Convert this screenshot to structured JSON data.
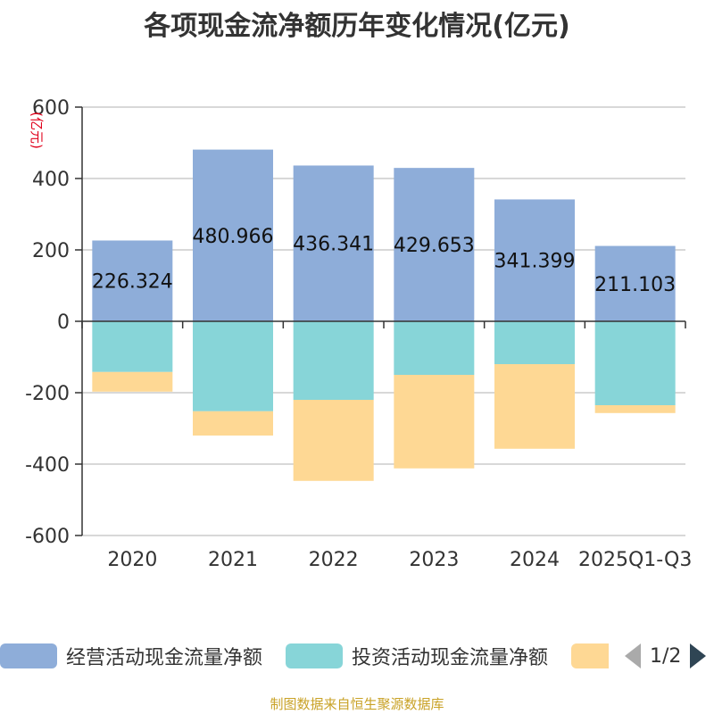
{
  "title": "各项现金流净额历年变化情况(亿元)",
  "source": "制图数据来自恒生聚源数据库",
  "legend": {
    "items": [
      {
        "label": "经营活动现金流量净额",
        "color": "#8eadd9"
      },
      {
        "label": "投资活动现金流量净额",
        "color": "#87d5d8"
      },
      {
        "label": "",
        "color": "#fed894"
      }
    ],
    "page": "1/2"
  },
  "chart_data": {
    "type": "bar",
    "stacked": true,
    "categories": [
      "2020",
      "2021",
      "2022",
      "2023",
      "2024",
      "2025Q1-Q3"
    ],
    "ylabel": "(亿元)",
    "ylim": [
      -600,
      600
    ],
    "yticks": [
      600,
      400,
      200,
      0,
      -200,
      -400,
      -600
    ],
    "grid": true,
    "legend_position": "bottom",
    "series": [
      {
        "name": "经营活动现金流量净额",
        "color": "#8eadd9",
        "values": [
          226.324,
          480.966,
          436.341,
          429.653,
          341.399,
          211.103
        ],
        "labels": [
          "226.324",
          "480.966",
          "436.341",
          "429.653",
          "341.399",
          "211.103"
        ]
      },
      {
        "name": "投资活动现金流量净额",
        "color": "#87d5d8",
        "values": [
          -142,
          -252,
          -220,
          -150,
          -120,
          -235
        ]
      },
      {
        "name": "",
        "color": "#fed894",
        "values": [
          -55,
          -68,
          -227,
          -262,
          -237,
          -22
        ]
      }
    ]
  }
}
